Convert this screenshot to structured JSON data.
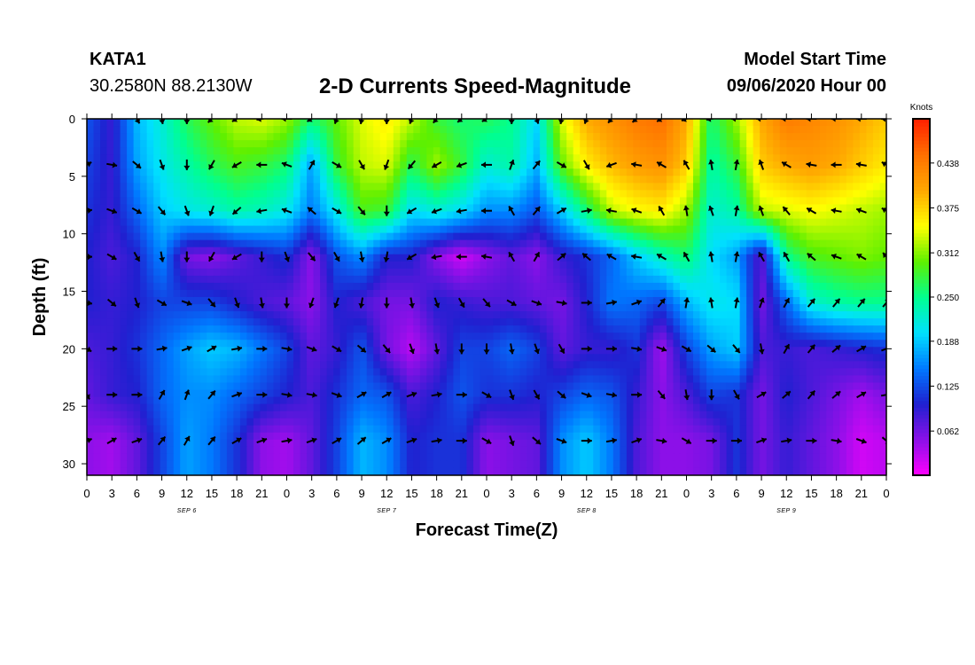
{
  "header": {
    "station": "KATA1",
    "coords": "30.2580N 88.2130W",
    "title": "2-D Currents Speed-Magnitude",
    "start_label": "Model Start Time",
    "start_value": "09/06/2020 Hour 00"
  },
  "chart_data": {
    "type": "heatmap",
    "title": "2-D Currents Speed-Magnitude",
    "xlabel": "Forecast Time(Z)",
    "ylabel": "Depth (ft)",
    "x_tick_labels": [
      "0",
      "3",
      "6",
      "9",
      "12",
      "15",
      "18",
      "21",
      "0",
      "3",
      "6",
      "9",
      "12",
      "15",
      "18",
      "21",
      "0",
      "3",
      "6",
      "9",
      "12",
      "15",
      "18",
      "21",
      "0",
      "3",
      "6",
      "9",
      "12",
      "15",
      "18",
      "21",
      "0"
    ],
    "x_range_hours": [
      0,
      96
    ],
    "day_labels": [
      {
        "text": "SEP 6",
        "hour": 12
      },
      {
        "text": "SEP 7",
        "hour": 36
      },
      {
        "text": "SEP 8",
        "hour": 60
      },
      {
        "text": "SEP 9",
        "hour": 84
      }
    ],
    "y_ticks": [
      0,
      5,
      10,
      15,
      20,
      25,
      30
    ],
    "ylim": [
      0,
      31
    ],
    "y_inverted": true,
    "colorbar": {
      "unit": "Knots",
      "ticks": [
        "0.062",
        "0.125",
        "0.188",
        "0.250",
        "0.312",
        "0.375",
        "0.438"
      ],
      "range": [
        0,
        0.5
      ],
      "colors": [
        "#ff00ff",
        "#8c10e8",
        "#2020d0",
        "#0078ff",
        "#00e0ff",
        "#00ff90",
        "#5ef000",
        "#ffff00",
        "#ffa800",
        "#ff7000",
        "#ff2000"
      ]
    },
    "depths_ft": [
      0,
      4,
      8,
      12,
      16,
      20,
      24,
      28
    ],
    "hours": [
      0,
      3,
      6,
      9,
      12,
      15,
      18,
      21,
      24,
      27,
      30,
      33,
      36,
      39,
      42,
      45,
      48,
      51,
      54,
      57,
      60,
      63,
      66,
      69,
      72,
      75,
      78,
      81,
      84,
      87,
      90,
      93,
      96
    ],
    "speed_knots": [
      [
        0.13,
        0.09,
        0.18,
        0.22,
        0.27,
        0.3,
        0.33,
        0.34,
        0.32,
        0.26,
        0.3,
        0.34,
        0.36,
        0.33,
        0.28,
        0.26,
        0.27,
        0.25,
        0.2,
        0.34,
        0.4,
        0.42,
        0.44,
        0.45,
        0.4,
        0.26,
        0.32,
        0.4,
        0.44,
        0.43,
        0.42,
        0.4,
        0.38
      ],
      [
        0.12,
        0.09,
        0.17,
        0.21,
        0.24,
        0.27,
        0.29,
        0.28,
        0.26,
        0.17,
        0.28,
        0.33,
        0.34,
        0.27,
        0.32,
        0.28,
        0.22,
        0.24,
        0.18,
        0.3,
        0.36,
        0.39,
        0.41,
        0.42,
        0.38,
        0.24,
        0.28,
        0.38,
        0.4,
        0.41,
        0.4,
        0.38,
        0.36
      ],
      [
        0.11,
        0.09,
        0.14,
        0.19,
        0.21,
        0.22,
        0.24,
        0.23,
        0.21,
        0.15,
        0.21,
        0.29,
        0.28,
        0.2,
        0.22,
        0.2,
        0.16,
        0.16,
        0.13,
        0.19,
        0.26,
        0.33,
        0.35,
        0.36,
        0.32,
        0.22,
        0.24,
        0.33,
        0.34,
        0.35,
        0.34,
        0.33,
        0.32
      ],
      [
        0.1,
        0.08,
        0.1,
        0.16,
        0.06,
        0.05,
        0.07,
        0.09,
        0.11,
        0.05,
        0.13,
        0.16,
        0.1,
        0.1,
        0.05,
        0.02,
        0.05,
        0.07,
        0.05,
        0.09,
        0.11,
        0.14,
        0.19,
        0.23,
        0.26,
        0.2,
        0.17,
        0.07,
        0.25,
        0.29,
        0.3,
        0.31,
        0.3
      ],
      [
        0.1,
        0.09,
        0.1,
        0.12,
        0.12,
        0.12,
        0.1,
        0.08,
        0.07,
        0.05,
        0.1,
        0.08,
        0.06,
        0.06,
        0.1,
        0.09,
        0.08,
        0.08,
        0.07,
        0.06,
        0.1,
        0.15,
        0.14,
        0.12,
        0.18,
        0.21,
        0.2,
        0.06,
        0.14,
        0.22,
        0.24,
        0.25,
        0.25
      ],
      [
        0.08,
        0.09,
        0.11,
        0.14,
        0.17,
        0.19,
        0.18,
        0.15,
        0.12,
        0.07,
        0.09,
        0.13,
        0.06,
        0.03,
        0.07,
        0.12,
        0.12,
        0.14,
        0.12,
        0.07,
        0.09,
        0.09,
        0.11,
        0.04,
        0.12,
        0.17,
        0.19,
        0.08,
        0.09,
        0.08,
        0.09,
        0.1,
        0.11
      ],
      [
        0.07,
        0.09,
        0.1,
        0.14,
        0.16,
        0.16,
        0.14,
        0.12,
        0.1,
        0.08,
        0.11,
        0.14,
        0.13,
        0.08,
        0.1,
        0.13,
        0.11,
        0.11,
        0.1,
        0.12,
        0.14,
        0.13,
        0.09,
        0.05,
        0.08,
        0.12,
        0.11,
        0.06,
        0.1,
        0.08,
        0.06,
        0.04,
        0.06
      ],
      [
        0.05,
        0.04,
        0.07,
        0.12,
        0.17,
        0.15,
        0.11,
        0.05,
        0.04,
        0.07,
        0.12,
        0.18,
        0.16,
        0.1,
        0.11,
        0.11,
        0.05,
        0.06,
        0.07,
        0.16,
        0.19,
        0.15,
        0.08,
        0.05,
        0.05,
        0.06,
        0.11,
        0.06,
        0.09,
        0.07,
        0.05,
        0.02,
        0.03
      ]
    ],
    "arrow_heading_deg": [
      [
        null,
        null,
        150,
        170,
        180,
        225,
        240,
        260,
        270,
        240,
        200,
        190,
        180,
        200,
        220,
        230,
        240,
        180,
        160,
        190,
        200,
        220,
        230,
        240,
        250,
        260,
        270,
        270,
        270,
        270,
        270,
        270,
        270
      ],
      [
        60,
        100,
        130,
        160,
        180,
        210,
        240,
        270,
        290,
        30,
        120,
        150,
        200,
        220,
        240,
        250,
        270,
        20,
        40,
        120,
        150,
        250,
        280,
        300,
        330,
        350,
        10,
        340,
        300,
        280,
        270,
        280,
        300
      ],
      [
        80,
        110,
        120,
        140,
        160,
        200,
        230,
        260,
        290,
        310,
        120,
        140,
        180,
        240,
        250,
        260,
        270,
        330,
        40,
        60,
        80,
        280,
        290,
        330,
        350,
        340,
        10,
        340,
        320,
        300,
        280,
        290,
        300
      ],
      [
        90,
        120,
        150,
        170,
        180,
        210,
        240,
        180,
        160,
        140,
        150,
        170,
        190,
        240,
        260,
        270,
        280,
        330,
        30,
        50,
        310,
        300,
        280,
        300,
        330,
        350,
        10,
        330,
        330,
        310,
        290,
        300,
        320
      ],
      [
        100,
        130,
        160,
        120,
        110,
        140,
        160,
        170,
        180,
        200,
        200,
        190,
        180,
        170,
        160,
        150,
        140,
        120,
        110,
        100,
        90,
        80,
        70,
        40,
        10,
        350,
        10,
        20,
        30,
        40,
        40,
        40,
        40
      ],
      [
        120,
        90,
        90,
        80,
        70,
        60,
        80,
        90,
        100,
        110,
        120,
        130,
        140,
        160,
        170,
        180,
        180,
        170,
        160,
        150,
        90,
        90,
        100,
        110,
        120,
        130,
        140,
        170,
        30,
        40,
        50,
        60,
        70
      ],
      [
        150,
        90,
        90,
        30,
        20,
        40,
        70,
        90,
        100,
        100,
        110,
        60,
        60,
        70,
        80,
        90,
        120,
        160,
        150,
        130,
        110,
        100,
        90,
        140,
        170,
        180,
        150,
        60,
        50,
        40,
        50,
        60,
        80
      ],
      [
        70,
        60,
        70,
        40,
        30,
        40,
        60,
        70,
        80,
        70,
        60,
        50,
        60,
        70,
        80,
        90,
        120,
        160,
        130,
        110,
        90,
        80,
        70,
        100,
        120,
        90,
        90,
        70,
        80,
        90,
        100,
        110,
        130
      ]
    ]
  }
}
